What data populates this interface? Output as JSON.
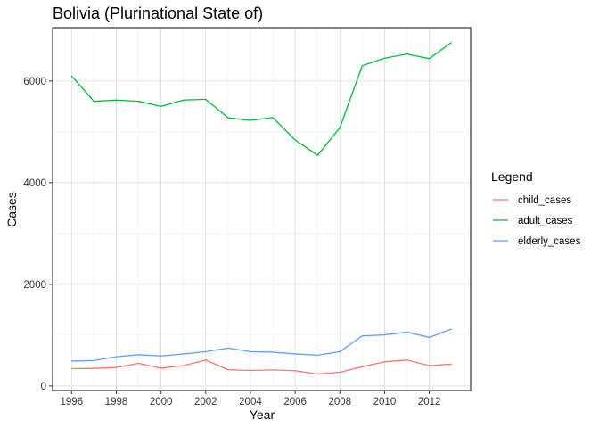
{
  "chart_data": {
    "type": "line",
    "title": "Bolivia (Plurinational State of)",
    "xlabel": "Year",
    "ylabel": "Cases",
    "x": [
      1996,
      1997,
      1998,
      1999,
      2000,
      2001,
      2002,
      2003,
      2004,
      2005,
      2006,
      2007,
      2008,
      2009,
      2010,
      2011,
      2012,
      2013
    ],
    "xlim": [
      1995.15,
      2013.85
    ],
    "ylim": [
      -90,
      7050
    ],
    "xticks": [
      1996,
      1998,
      2000,
      2002,
      2004,
      2006,
      2008,
      2010,
      2012
    ],
    "yticks": [
      0,
      2000,
      4000,
      6000
    ],
    "grid": true,
    "legend": {
      "title": "Legend",
      "position": "right"
    },
    "series": [
      {
        "name": "child_cases",
        "color": "#F8766D",
        "values": [
          340,
          345,
          365,
          445,
          350,
          400,
          510,
          320,
          305,
          315,
          300,
          235,
          270,
          380,
          475,
          510,
          400,
          430
        ]
      },
      {
        "name": "adult_cases",
        "color": "#00BA38",
        "values": [
          6100,
          5600,
          5625,
          5600,
          5500,
          5625,
          5640,
          5275,
          5225,
          5280,
          4840,
          4540,
          5080,
          6300,
          6450,
          6530,
          6440,
          6760
        ]
      },
      {
        "name": "elderly_cases",
        "color": "#619CFF",
        "values": [
          490,
          500,
          575,
          615,
          590,
          630,
          675,
          745,
          675,
          665,
          630,
          605,
          675,
          985,
          1005,
          1060,
          955,
          1120
        ]
      }
    ]
  }
}
